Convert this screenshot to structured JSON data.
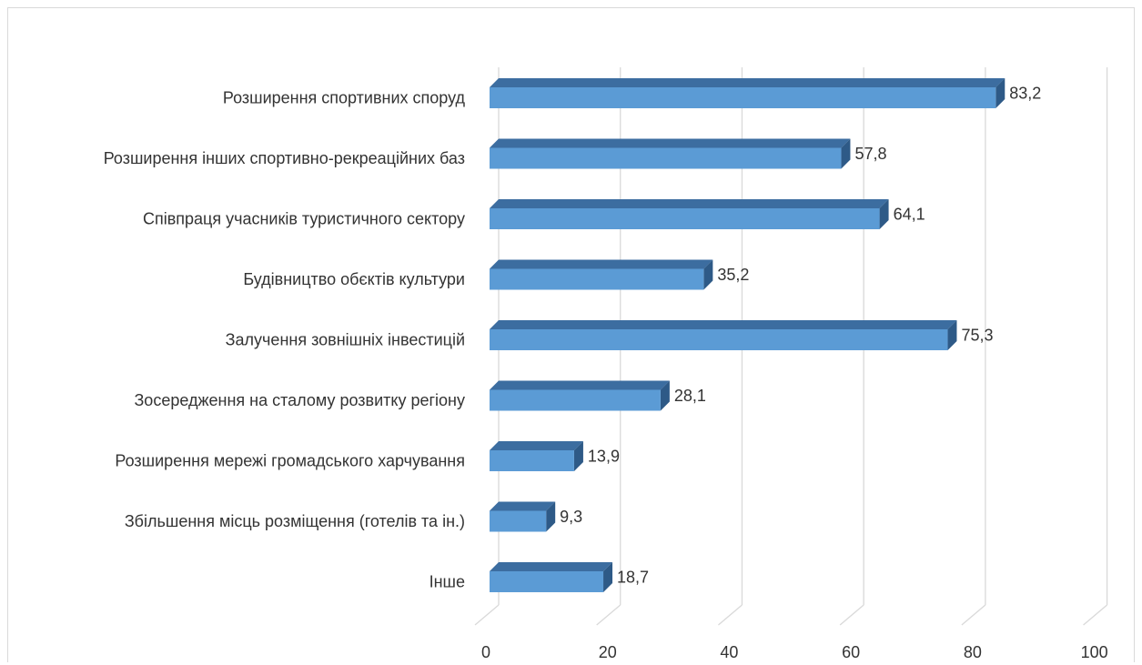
{
  "chart_data": {
    "type": "bar",
    "orientation": "horizontal",
    "style": "3d",
    "categories": [
      "Розширення спортивних споруд",
      "Розширення інших спортивно-рекреаційних баз",
      "Співпраця учасників туристичного сектору",
      "Будівництво обєктів культури",
      "Залучення зовнішніх інвестицій",
      "Зосередження на сталому розвитку регіону",
      "Розширення мережі громадського харчування",
      "Збільшення місць розміщення (готелів та ін.)",
      "Інше"
    ],
    "values": [
      83.2,
      57.8,
      64.1,
      35.2,
      75.3,
      28.1,
      13.9,
      9.3,
      18.7
    ],
    "value_labels": [
      "83,2",
      "57,8",
      "64,1",
      "35,2",
      "75,3",
      "28,1",
      "13,9",
      "9,3",
      "18,7"
    ],
    "xlim": [
      0,
      100
    ],
    "xticks": [
      0,
      20,
      40,
      60,
      80,
      100
    ],
    "grid": true,
    "legend": "none",
    "colors": {
      "bar_front": "#5b9bd5",
      "bar_top": "#3c6da0",
      "bar_side": "#2e5a87",
      "grid": "#d9d9d9"
    }
  }
}
